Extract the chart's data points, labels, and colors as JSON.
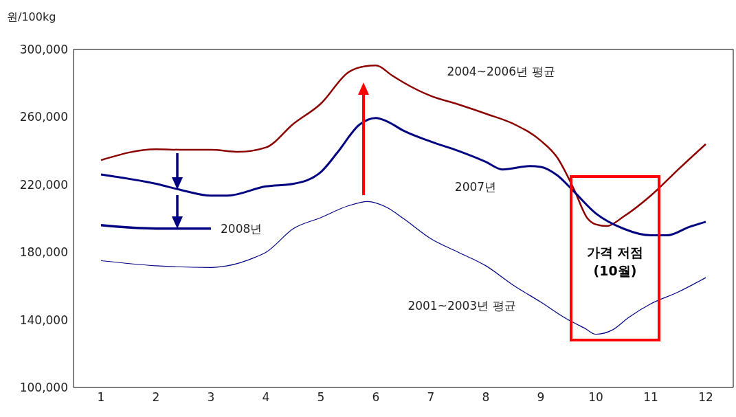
{
  "chart_data": {
    "type": "line",
    "ylabel": "원/100kg",
    "xlim": [
      0.5,
      12.5
    ],
    "xticks": [
      1,
      2,
      3,
      4,
      5,
      6,
      7,
      8,
      9,
      10,
      11,
      12
    ],
    "ylim": [
      100000,
      300000
    ],
    "yticks": [
      {
        "value": 100000,
        "label": "100,000"
      },
      {
        "value": 140000,
        "label": "140,000"
      },
      {
        "value": 180000,
        "label": "180,000"
      },
      {
        "value": 220000,
        "label": "220,000"
      },
      {
        "value": 260000,
        "label": "260,000"
      },
      {
        "value": 300000,
        "label": "300,000"
      }
    ],
    "marker": "none",
    "line_style": "solid",
    "series": [
      {
        "name": "2004~2006년 평균",
        "color": "#8b0000",
        "x": [
          1,
          2,
          2.5,
          3,
          3.5,
          4,
          4.5,
          5,
          5.5,
          5.8,
          6,
          6.3,
          6.5,
          7,
          7.5,
          8,
          8.5,
          9,
          9.3,
          9.6,
          9.85,
          10,
          10.2,
          10.5,
          11,
          11.5,
          12
        ],
        "values": [
          234500,
          241000,
          240600,
          240600,
          239400,
          242000,
          256000,
          268000,
          286500,
          290000,
          290500,
          284500,
          280500,
          272500,
          267500,
          262000,
          256000,
          246000,
          236000,
          217500,
          200000,
          196500,
          195500,
          201000,
          213500,
          229000,
          244000
        ]
      },
      {
        "name": "2007년",
        "color": "#000080",
        "x": [
          1,
          2,
          2.5,
          3,
          3.3,
          4,
          4.5,
          5,
          5.3,
          5.7,
          6,
          6.2,
          6.5,
          7,
          7.5,
          8,
          8.3,
          8.8,
          9,
          9.3,
          9.6,
          10,
          10.5,
          11,
          11.3,
          11.7,
          12
        ],
        "values": [
          226000,
          220500,
          216500,
          213500,
          213500,
          219000,
          220500,
          227500,
          239000,
          255500,
          259500,
          257500,
          252000,
          245500,
          240000,
          233500,
          229000,
          231000,
          230500,
          225500,
          216000,
          203000,
          194000,
          190000,
          190000,
          195000,
          198000
        ]
      },
      {
        "name": "2008년",
        "color": "#000080",
        "x": [
          1,
          2,
          3
        ],
        "values": [
          196000,
          194000,
          194000
        ]
      },
      {
        "name": "2001~2003년 평균",
        "color": "#000080",
        "x": [
          1,
          2,
          3,
          3.3,
          3.8,
          4,
          4.5,
          5,
          5.5,
          5.85,
          6.2,
          6.5,
          7,
          7.5,
          8,
          8.5,
          9,
          9.5,
          9.8,
          10,
          10.3,
          10.6,
          11,
          11.5,
          12
        ],
        "values": [
          175000,
          172000,
          171000,
          172000,
          177000,
          180000,
          194000,
          200500,
          207500,
          210000,
          206500,
          200000,
          188000,
          180000,
          172000,
          160500,
          150500,
          140000,
          135000,
          131500,
          134000,
          141500,
          149500,
          156500,
          165000
        ]
      }
    ],
    "annotations": [
      "가격 저점 (10월)"
    ]
  }
}
